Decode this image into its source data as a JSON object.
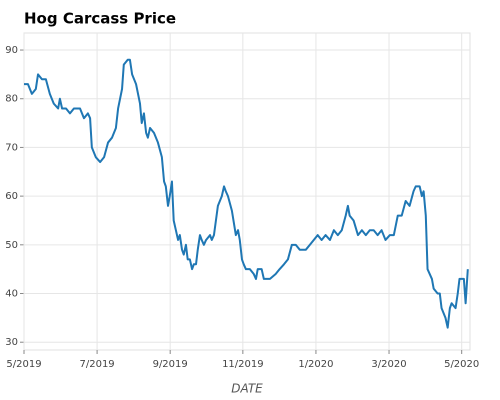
{
  "chart_data": {
    "type": "line",
    "title": "Hog Carcass Price",
    "x_label": "DATE",
    "grid": true,
    "xlim": [
      2019.333,
      2020.352
    ],
    "xticks": [
      {
        "value": 2019.333,
        "label": "5/2019"
      },
      {
        "value": 2019.5,
        "label": "7/2019"
      },
      {
        "value": 2019.667,
        "label": "9/2019"
      },
      {
        "value": 2019.833,
        "label": "11/2019"
      },
      {
        "value": 2020.0,
        "label": "1/2020"
      },
      {
        "value": 2020.167,
        "label": "3/2020"
      },
      {
        "value": 2020.333,
        "label": "5/2020"
      }
    ],
    "ylim": [
      28.4,
      93.5
    ],
    "yticks": [
      30,
      40,
      50,
      60,
      70,
      80,
      90
    ],
    "series": [
      {
        "color": "#1f77b4",
        "x": [
          2019.333,
          2019.342,
          2019.351,
          2019.36,
          2019.365,
          2019.374,
          2019.383,
          2019.392,
          2019.401,
          2019.411,
          2019.415,
          2019.42,
          2019.429,
          2019.438,
          2019.447,
          2019.461,
          2019.47,
          2019.479,
          2019.484,
          2019.488,
          2019.497,
          2019.507,
          2019.516,
          2019.525,
          2019.534,
          2019.543,
          2019.548,
          2019.557,
          2019.561,
          2019.57,
          2019.575,
          2019.58,
          2019.589,
          2019.598,
          2019.602,
          2019.607,
          2019.612,
          2019.616,
          2019.621,
          2019.63,
          2019.639,
          2019.648,
          2019.653,
          2019.657,
          2019.662,
          2019.666,
          2019.671,
          2019.675,
          2019.68,
          2019.685,
          2019.689,
          2019.694,
          2019.698,
          2019.703,
          2019.707,
          2019.712,
          2019.717,
          2019.721,
          2019.726,
          2019.73,
          2019.735,
          2019.739,
          2019.744,
          2019.749,
          2019.758,
          2019.762,
          2019.767,
          2019.776,
          2019.785,
          2019.79,
          2019.794,
          2019.799,
          2019.808,
          2019.817,
          2019.822,
          2019.826,
          2019.831,
          2019.835,
          2019.84,
          2019.849,
          2019.858,
          2019.863,
          2019.867,
          2019.876,
          2019.881,
          2019.895,
          2019.908,
          2019.917,
          2019.927,
          2019.936,
          2019.945,
          2019.954,
          2019.963,
          2019.977,
          2019.986,
          2019.995,
          2020.004,
          2020.013,
          2020.022,
          2020.032,
          2020.041,
          2020.05,
          2020.059,
          2020.068,
          2020.073,
          2020.077,
          2020.086,
          2020.096,
          2020.105,
          2020.114,
          2020.123,
          2020.132,
          2020.141,
          2020.15,
          2020.159,
          2020.169,
          2020.178,
          2020.187,
          2020.196,
          2020.205,
          2020.214,
          2020.223,
          2020.228,
          2020.237,
          2020.242,
          2020.246,
          2020.251,
          2020.255,
          2020.265,
          2020.269,
          2020.278,
          2020.283,
          2020.287,
          2020.296,
          2020.301,
          2020.306,
          2020.31,
          2020.319,
          2020.324,
          2020.328,
          2020.338,
          2020.342,
          2020.347
        ],
        "values": [
          83,
          83,
          81,
          82,
          85,
          84,
          84,
          81,
          79,
          78,
          80,
          78,
          78,
          77,
          78,
          78,
          76,
          77,
          76,
          70,
          68,
          67,
          68,
          71,
          72,
          74,
          78,
          82,
          87,
          88,
          88,
          85,
          83,
          79,
          75,
          77,
          73,
          72,
          74,
          73,
          71,
          68,
          63,
          62,
          58,
          60,
          63,
          55,
          53,
          51,
          52,
          49,
          48,
          50,
          47,
          47,
          45,
          46,
          46,
          49,
          52,
          51,
          50,
          51,
          52,
          51,
          52,
          58,
          60,
          62,
          61,
          60,
          57,
          52,
          53,
          51,
          47,
          46,
          45,
          45,
          44,
          43,
          45,
          45,
          43,
          43,
          44,
          45,
          46,
          47,
          50,
          50,
          49,
          49,
          50,
          51,
          52,
          51,
          52,
          51,
          53,
          52,
          53,
          56,
          58,
          56,
          55,
          52,
          53,
          52,
          53,
          53,
          52,
          53,
          51,
          52,
          52,
          56,
          56,
          59,
          58,
          61,
          62,
          62,
          60,
          61,
          56,
          45,
          43,
          41,
          40,
          40,
          37,
          35,
          33,
          37,
          38,
          37,
          40,
          43,
          43,
          38,
          45
        ]
      }
    ]
  }
}
